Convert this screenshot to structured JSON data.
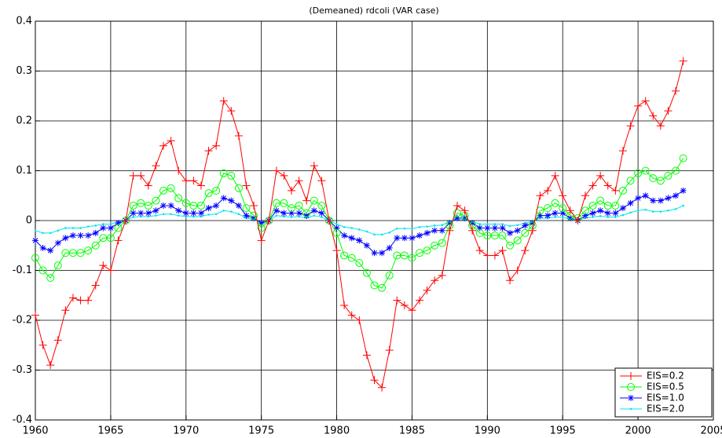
{
  "chart_data": {
    "type": "line",
    "title": "(Demeaned) rdcoli (VAR case)",
    "x": [
      1960,
      1960.5,
      1961,
      1961.5,
      1962,
      1962.5,
      1963,
      1963.5,
      1964,
      1964.5,
      1965,
      1965.5,
      1966,
      1966.5,
      1967,
      1967.5,
      1968,
      1968.5,
      1969,
      1969.5,
      1970,
      1970.5,
      1971,
      1971.5,
      1972,
      1972.5,
      1973,
      1973.5,
      1974,
      1974.5,
      1975,
      1975.5,
      1976,
      1976.5,
      1977,
      1977.5,
      1978,
      1978.5,
      1979,
      1979.5,
      1980,
      1980.5,
      1981,
      1981.5,
      1982,
      1982.5,
      1983,
      1983.5,
      1984,
      1984.5,
      1985,
      1985.5,
      1986,
      1986.5,
      1987,
      1987.5,
      1988,
      1988.5,
      1989,
      1989.5,
      1990,
      1990.5,
      1991,
      1991.5,
      1992,
      1992.5,
      1993,
      1993.5,
      1994,
      1994.5,
      1995,
      1995.5,
      1996,
      1996.5,
      1997,
      1997.5,
      1998,
      1998.5,
      1999,
      1999.5,
      2000,
      2000.5,
      2001,
      2001.5,
      2002,
      2002.5,
      2003
    ],
    "series": [
      {
        "name": "EIS=0.2",
        "color": "#ff0000",
        "marker": "plus",
        "values": [
          -0.19,
          -0.25,
          -0.29,
          -0.24,
          -0.18,
          -0.155,
          -0.16,
          -0.16,
          -0.13,
          -0.09,
          -0.1,
          -0.04,
          0.0,
          0.09,
          0.09,
          0.07,
          0.11,
          0.15,
          0.16,
          0.1,
          0.08,
          0.08,
          0.07,
          0.14,
          0.15,
          0.24,
          0.22,
          0.17,
          0.07,
          0.03,
          -0.04,
          0.0,
          0.1,
          0.09,
          0.06,
          0.08,
          0.04,
          0.11,
          0.08,
          0.0,
          -0.06,
          -0.17,
          -0.19,
          -0.2,
          -0.27,
          -0.32,
          -0.335,
          -0.26,
          -0.16,
          -0.17,
          -0.18,
          -0.16,
          -0.14,
          -0.12,
          -0.11,
          -0.02,
          0.03,
          0.02,
          -0.02,
          -0.06,
          -0.07,
          -0.07,
          -0.06,
          -0.12,
          -0.1,
          -0.06,
          -0.02,
          0.05,
          0.06,
          0.09,
          0.05,
          0.02,
          0.0,
          0.05,
          0.07,
          0.09,
          0.07,
          0.06,
          0.14,
          0.19,
          0.23,
          0.24,
          0.21,
          0.19,
          0.22,
          0.26,
          0.32
        ]
      },
      {
        "name": "EIS=0.5",
        "color": "#00ff00",
        "marker": "circle",
        "values": [
          -0.075,
          -0.1,
          -0.115,
          -0.09,
          -0.065,
          -0.065,
          -0.065,
          -0.06,
          -0.05,
          -0.035,
          -0.035,
          -0.015,
          0.0,
          0.03,
          0.035,
          0.03,
          0.04,
          0.06,
          0.065,
          0.045,
          0.035,
          0.03,
          0.03,
          0.055,
          0.06,
          0.095,
          0.09,
          0.065,
          0.025,
          0.01,
          -0.015,
          0.0,
          0.035,
          0.035,
          0.025,
          0.03,
          0.015,
          0.04,
          0.03,
          0.0,
          -0.025,
          -0.07,
          -0.075,
          -0.085,
          -0.105,
          -0.13,
          -0.135,
          -0.11,
          -0.07,
          -0.07,
          -0.075,
          -0.065,
          -0.06,
          -0.05,
          -0.045,
          -0.01,
          0.015,
          0.01,
          -0.01,
          -0.025,
          -0.03,
          -0.03,
          -0.03,
          -0.05,
          -0.04,
          -0.025,
          -0.01,
          0.02,
          0.025,
          0.035,
          0.025,
          0.01,
          0.005,
          0.02,
          0.03,
          0.04,
          0.03,
          0.03,
          0.06,
          0.08,
          0.095,
          0.1,
          0.085,
          0.08,
          0.09,
          0.1,
          0.125
        ]
      },
      {
        "name": "EIS=1.0",
        "color": "#0000ff",
        "marker": "star",
        "values": [
          -0.04,
          -0.055,
          -0.06,
          -0.045,
          -0.035,
          -0.03,
          -0.03,
          -0.03,
          -0.025,
          -0.015,
          -0.015,
          -0.005,
          0.0,
          0.015,
          0.015,
          0.015,
          0.02,
          0.03,
          0.03,
          0.02,
          0.015,
          0.015,
          0.015,
          0.025,
          0.03,
          0.045,
          0.04,
          0.03,
          0.01,
          0.005,
          -0.005,
          0.0,
          0.02,
          0.015,
          0.015,
          0.015,
          0.01,
          0.02,
          0.015,
          0.0,
          -0.015,
          -0.03,
          -0.035,
          -0.04,
          -0.05,
          -0.065,
          -0.065,
          -0.055,
          -0.035,
          -0.035,
          -0.035,
          -0.03,
          -0.025,
          -0.02,
          -0.02,
          -0.005,
          0.005,
          0.005,
          -0.005,
          -0.015,
          -0.015,
          -0.015,
          -0.015,
          -0.025,
          -0.02,
          -0.01,
          -0.005,
          0.01,
          0.01,
          0.015,
          0.015,
          0.005,
          0.0,
          0.01,
          0.015,
          0.02,
          0.015,
          0.015,
          0.025,
          0.035,
          0.045,
          0.05,
          0.04,
          0.04,
          0.045,
          0.05,
          0.06
        ]
      },
      {
        "name": "EIS=2.0",
        "color": "#00e5ee",
        "marker": "point",
        "values": [
          -0.02,
          -0.025,
          -0.025,
          -0.02,
          -0.015,
          -0.015,
          -0.015,
          -0.012,
          -0.01,
          -0.007,
          -0.007,
          -0.002,
          0.0,
          0.007,
          0.008,
          0.008,
          0.01,
          0.013,
          0.013,
          0.01,
          0.008,
          0.008,
          0.008,
          0.012,
          0.013,
          0.02,
          0.018,
          0.013,
          0.005,
          0.002,
          -0.003,
          0.0,
          0.01,
          0.008,
          0.007,
          0.008,
          0.005,
          0.01,
          0.007,
          0.0,
          -0.007,
          -0.013,
          -0.015,
          -0.018,
          -0.022,
          -0.028,
          -0.028,
          -0.024,
          -0.016,
          -0.016,
          -0.016,
          -0.013,
          -0.012,
          -0.01,
          -0.009,
          -0.002,
          0.002,
          0.002,
          -0.002,
          -0.007,
          -0.007,
          -0.007,
          -0.007,
          -0.011,
          -0.009,
          -0.005,
          -0.002,
          0.005,
          0.005,
          0.007,
          0.007,
          0.002,
          0.0,
          0.005,
          0.007,
          0.009,
          0.007,
          0.007,
          0.011,
          0.016,
          0.02,
          0.022,
          0.018,
          0.018,
          0.02,
          0.023,
          0.03
        ]
      }
    ],
    "xlim": [
      1960,
      2005
    ],
    "xticks": [
      1960,
      1965,
      1970,
      1975,
      1980,
      1985,
      1990,
      1995,
      2000,
      2005
    ],
    "ylim": [
      -0.4,
      0.4
    ],
    "yticks": [
      -0.4,
      -0.3,
      -0.2,
      -0.1,
      0,
      0.1,
      0.2,
      0.3,
      0.4
    ],
    "grid": true,
    "legend": "lower right"
  }
}
